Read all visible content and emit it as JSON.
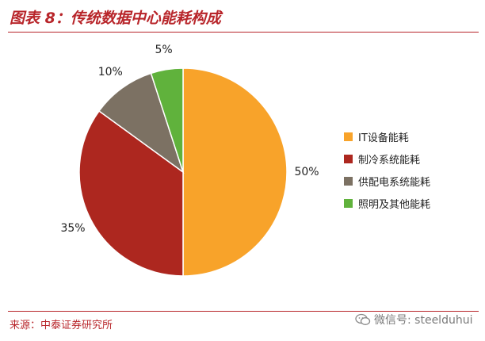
{
  "header": {
    "title": "图表 8：传统数据中心能耗构成"
  },
  "footer": {
    "source": "来源：中泰证券研究所",
    "watermark_text": "微信号: steelduhui"
  },
  "chart_data": {
    "type": "pie",
    "title": "",
    "legend_position": "right",
    "labels": [
      "IT设备能耗",
      "制冷系统能耗",
      "供配电系统能耗",
      "照明及其他能耗"
    ],
    "values": [
      50,
      35,
      10,
      5
    ],
    "data_labels": [
      "50%",
      "35%",
      "10%",
      "5%"
    ],
    "colors": [
      "#f8a32a",
      "#ad271f",
      "#7c7163",
      "#60b23c"
    ]
  }
}
